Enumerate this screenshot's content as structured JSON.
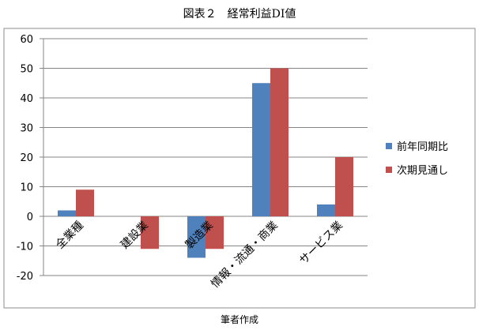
{
  "chart_data": {
    "type": "bar",
    "title": "図表２　経常利益DI値",
    "categories": [
      "全業種",
      "建設業",
      "製造業",
      "情報・流通・商業",
      "サービス業"
    ],
    "series": [
      {
        "name": "前年同期比",
        "color": "#4F81BD",
        "values": [
          2,
          0,
          -14,
          45,
          4
        ]
      },
      {
        "name": "次期見通し",
        "color": "#C0504D",
        "values": [
          9,
          -11,
          -11,
          50,
          20
        ]
      }
    ],
    "ylim": [
      -20,
      60
    ],
    "yticks": [
      60,
      50,
      40,
      30,
      20,
      10,
      0,
      -10,
      -20
    ],
    "ytick_labels": [
      "60",
      "50",
      "40",
      "30",
      "20",
      "10",
      "0",
      "-10",
      "-20"
    ],
    "grid": true,
    "legend_position": "right",
    "xlabel": "",
    "ylabel": ""
  },
  "source_note": "筆者作成"
}
